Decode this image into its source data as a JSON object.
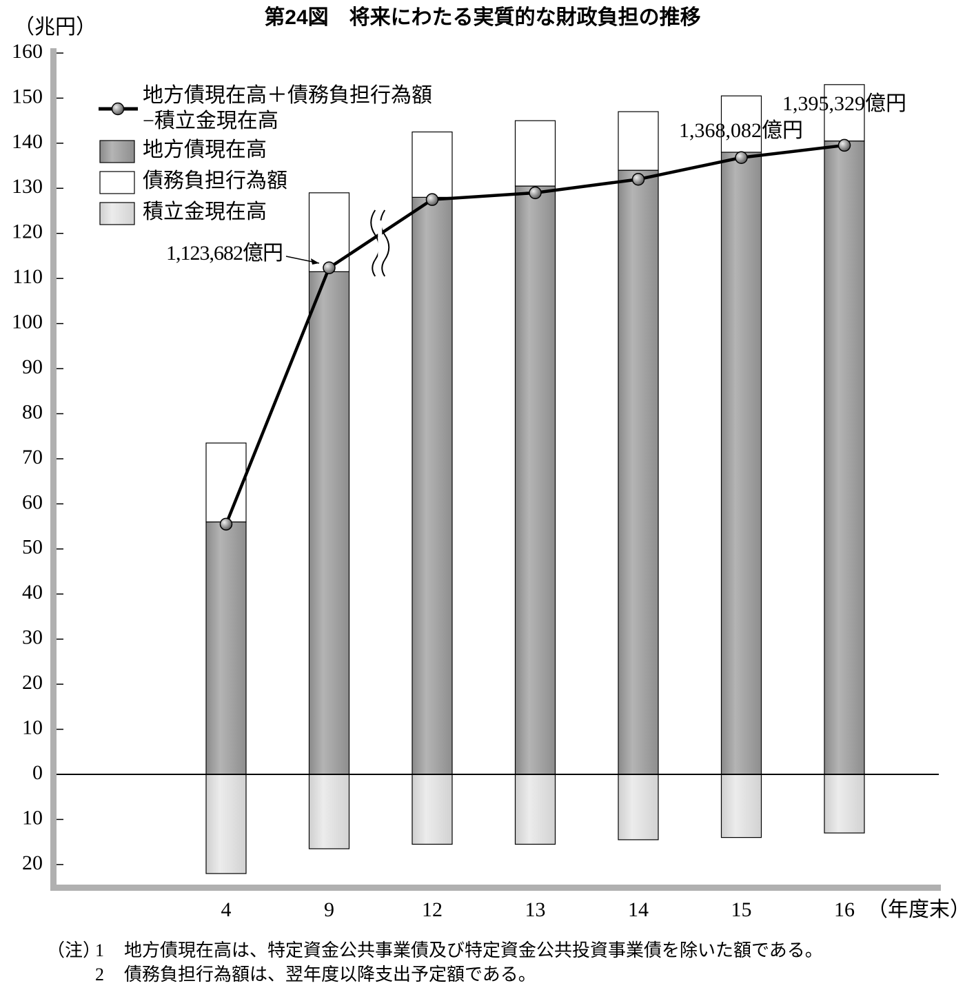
{
  "chart_data": {
    "type": "bar",
    "title": "第24図　将来にわたる実質的な財政負担の推移",
    "y_unit": "（兆円）",
    "x_unit": "（年度末）",
    "categories": [
      "4",
      "9",
      "12",
      "13",
      "14",
      "15",
      "16"
    ],
    "series": [
      {
        "name": "地方債現在高＋債務負担行為額\n−積立金現在高",
        "type": "line",
        "color": "#000000",
        "values": [
          55.5,
          112.3682,
          127.5,
          129,
          132,
          136.8082,
          139.5329
        ],
        "value_labels": [
          null,
          "1,123,682億円",
          null,
          null,
          null,
          "1,368,082億円",
          "1,395,329億円"
        ]
      },
      {
        "name": "地方債現在高",
        "color": "#a9a9a9",
        "values": [
          56,
          111.5,
          128,
          130.5,
          134,
          138,
          140.5
        ]
      },
      {
        "name": "債務負担行為額",
        "color": "#ffffff",
        "values": [
          17.5,
          17.5,
          14.5,
          14.5,
          13,
          12.5,
          12.5
        ]
      },
      {
        "name": "積立金現在高",
        "color": "#e2e2e2",
        "values": [
          -22,
          -16.5,
          -15.5,
          -15.5,
          -14.5,
          -14,
          -13
        ]
      }
    ],
    "ylim": [
      -25,
      160
    ],
    "yticks": [
      {
        "value": -20,
        "label": "20"
      },
      {
        "value": -10,
        "label": "10"
      },
      0,
      10,
      20,
      30,
      40,
      50,
      60,
      70,
      80,
      90,
      100,
      110,
      120,
      130,
      140,
      150,
      160
    ],
    "notes_label": "（注）",
    "notes": [
      {
        "number": "1",
        "text": "地方債現在高は、特定資金公共事業債及び特定資金公共投資事業債を除いた額である。"
      },
      {
        "number": "2",
        "text": "債務負担行為額は、翌年度以降支出予定額である。"
      }
    ]
  }
}
